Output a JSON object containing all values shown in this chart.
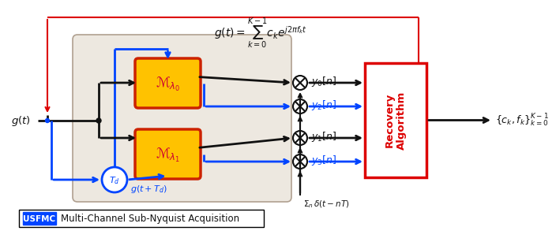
{
  "title_formula": "$g\\left(t\\right) = \\sum_{k=0}^{K-1} c_k e^{j2\\pi f_k t}$",
  "bg_color": "#ede8e0",
  "block_color_modulo": "#FFC200",
  "block_border_color": "#cc3300",
  "recovery_color": "#DD0000",
  "blue_color": "#0044FF",
  "black_color": "#111111",
  "red_color": "#DD0000",
  "label_m0": "$\\mathscr{M}_{\\lambda_0}$",
  "label_m1": "$\\mathscr{M}_{\\lambda_1}$",
  "label_gt": "$g(t)$",
  "label_td": "$T_d$",
  "label_gtd": "$g(t+T_d)$",
  "label_y0": "$y_0[n]$",
  "label_y1": "$y_1[n]$",
  "label_y2": "$y_2[n]$",
  "label_y3": "$y_3[n]$",
  "label_delta": "$\\Sigma_n\\,\\delta(t-nT)$",
  "label_recovery": "Recovery\nAlgorithm",
  "label_output": "$\\{c_k, f_k\\}_{k=0}^{K-1}$",
  "label_usfmc": "USFMC",
  "label_caption": "Multi-Channel Sub-Nyquist Acquisition"
}
